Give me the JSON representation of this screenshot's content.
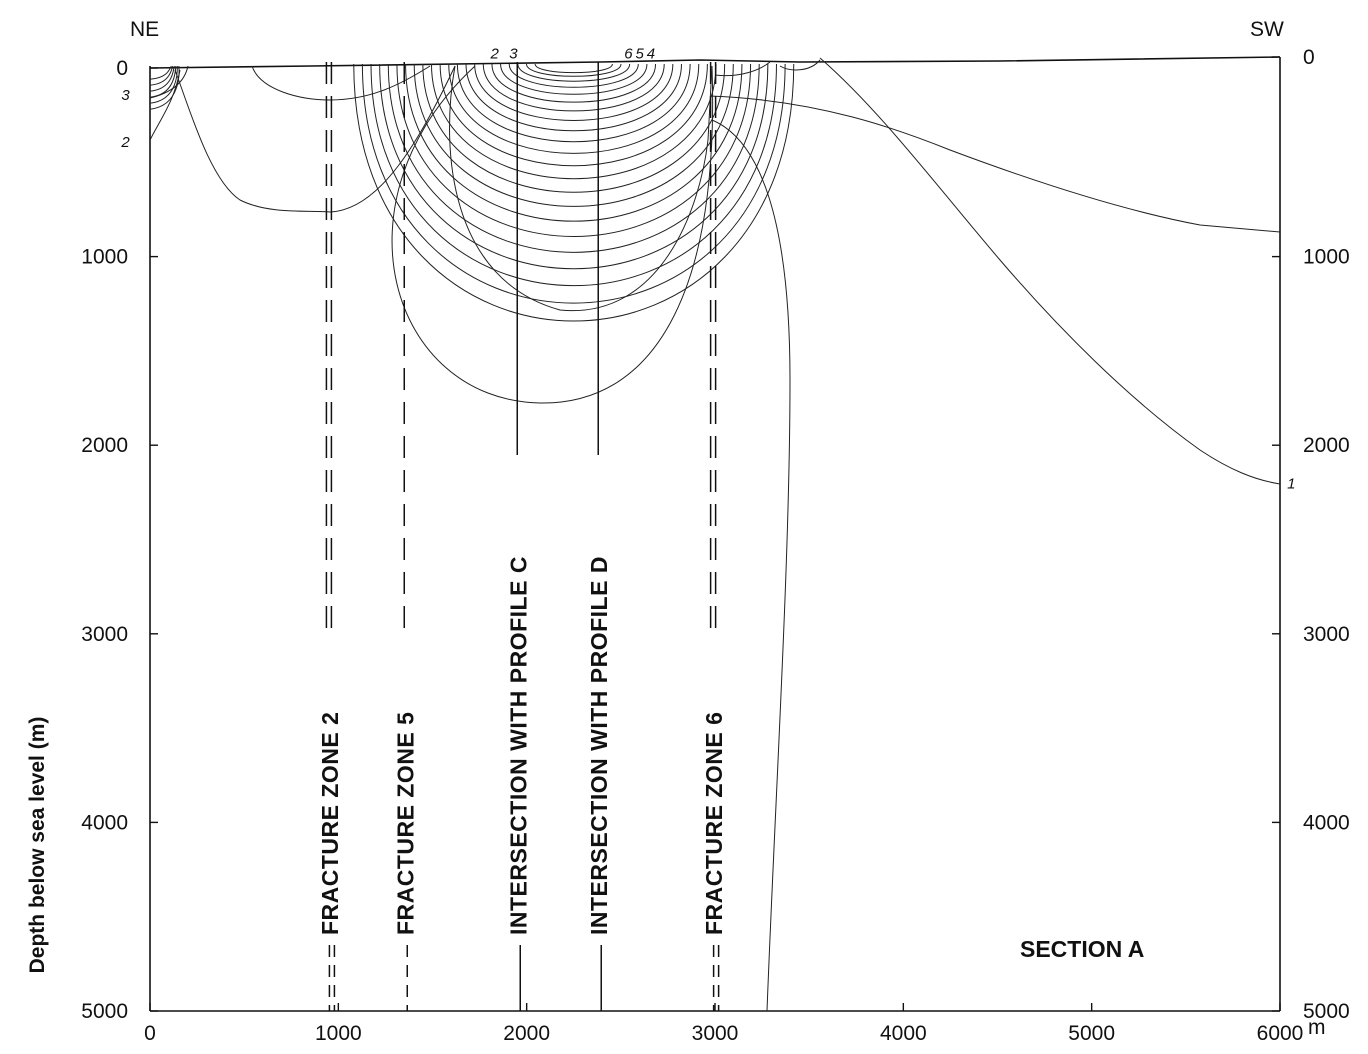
{
  "direction_left": "NE",
  "direction_right": "SW",
  "y_axis_label": "Depth below sea level (m)",
  "x_axis_unit": "m",
  "x_ticks": [
    "0",
    "1000",
    "2000",
    "3000",
    "4000",
    "5000",
    "6000"
  ],
  "y_ticks_left": [
    "0",
    "1000",
    "2000",
    "3000",
    "4000",
    "5000"
  ],
  "y_ticks_right": [
    "0",
    "1000",
    "2000",
    "3000",
    "4000",
    "5000"
  ],
  "section_label": "SECTION A",
  "vertical_lines": [
    {
      "x": 950,
      "label": "FRACTURE ZONE 2",
      "style": "double-dashed"
    },
    {
      "x": 1350,
      "label": "FRACTURE ZONE 5",
      "style": "dashed"
    },
    {
      "x": 1950,
      "label": "INTERSECTION WITH PROFILE C",
      "style": "solid"
    },
    {
      "x": 2380,
      "label": "INTERSECTION WITH PROFILE D",
      "style": "solid"
    },
    {
      "x": 2990,
      "label": "FRACTURE ZONE 6",
      "style": "double-dashed"
    }
  ],
  "contour_labels": [
    {
      "text": "2",
      "x": 1830,
      "y": -50
    },
    {
      "text": "3",
      "x": 1930,
      "y": -50
    },
    {
      "text": "6",
      "x": 2540,
      "y": -50
    },
    {
      "text": "5",
      "x": 2600,
      "y": -50
    },
    {
      "text": "4",
      "x": 2660,
      "y": -50
    },
    {
      "text": "3",
      "x": -130,
      "y": 170
    },
    {
      "text": "2",
      "x": -130,
      "y": 420
    },
    {
      "text": "1",
      "x": 6060,
      "y": 2230
    }
  ],
  "axes": {
    "x_range": [
      0,
      6000
    ],
    "y_range": [
      0,
      5000
    ],
    "y_inverted": true
  }
}
